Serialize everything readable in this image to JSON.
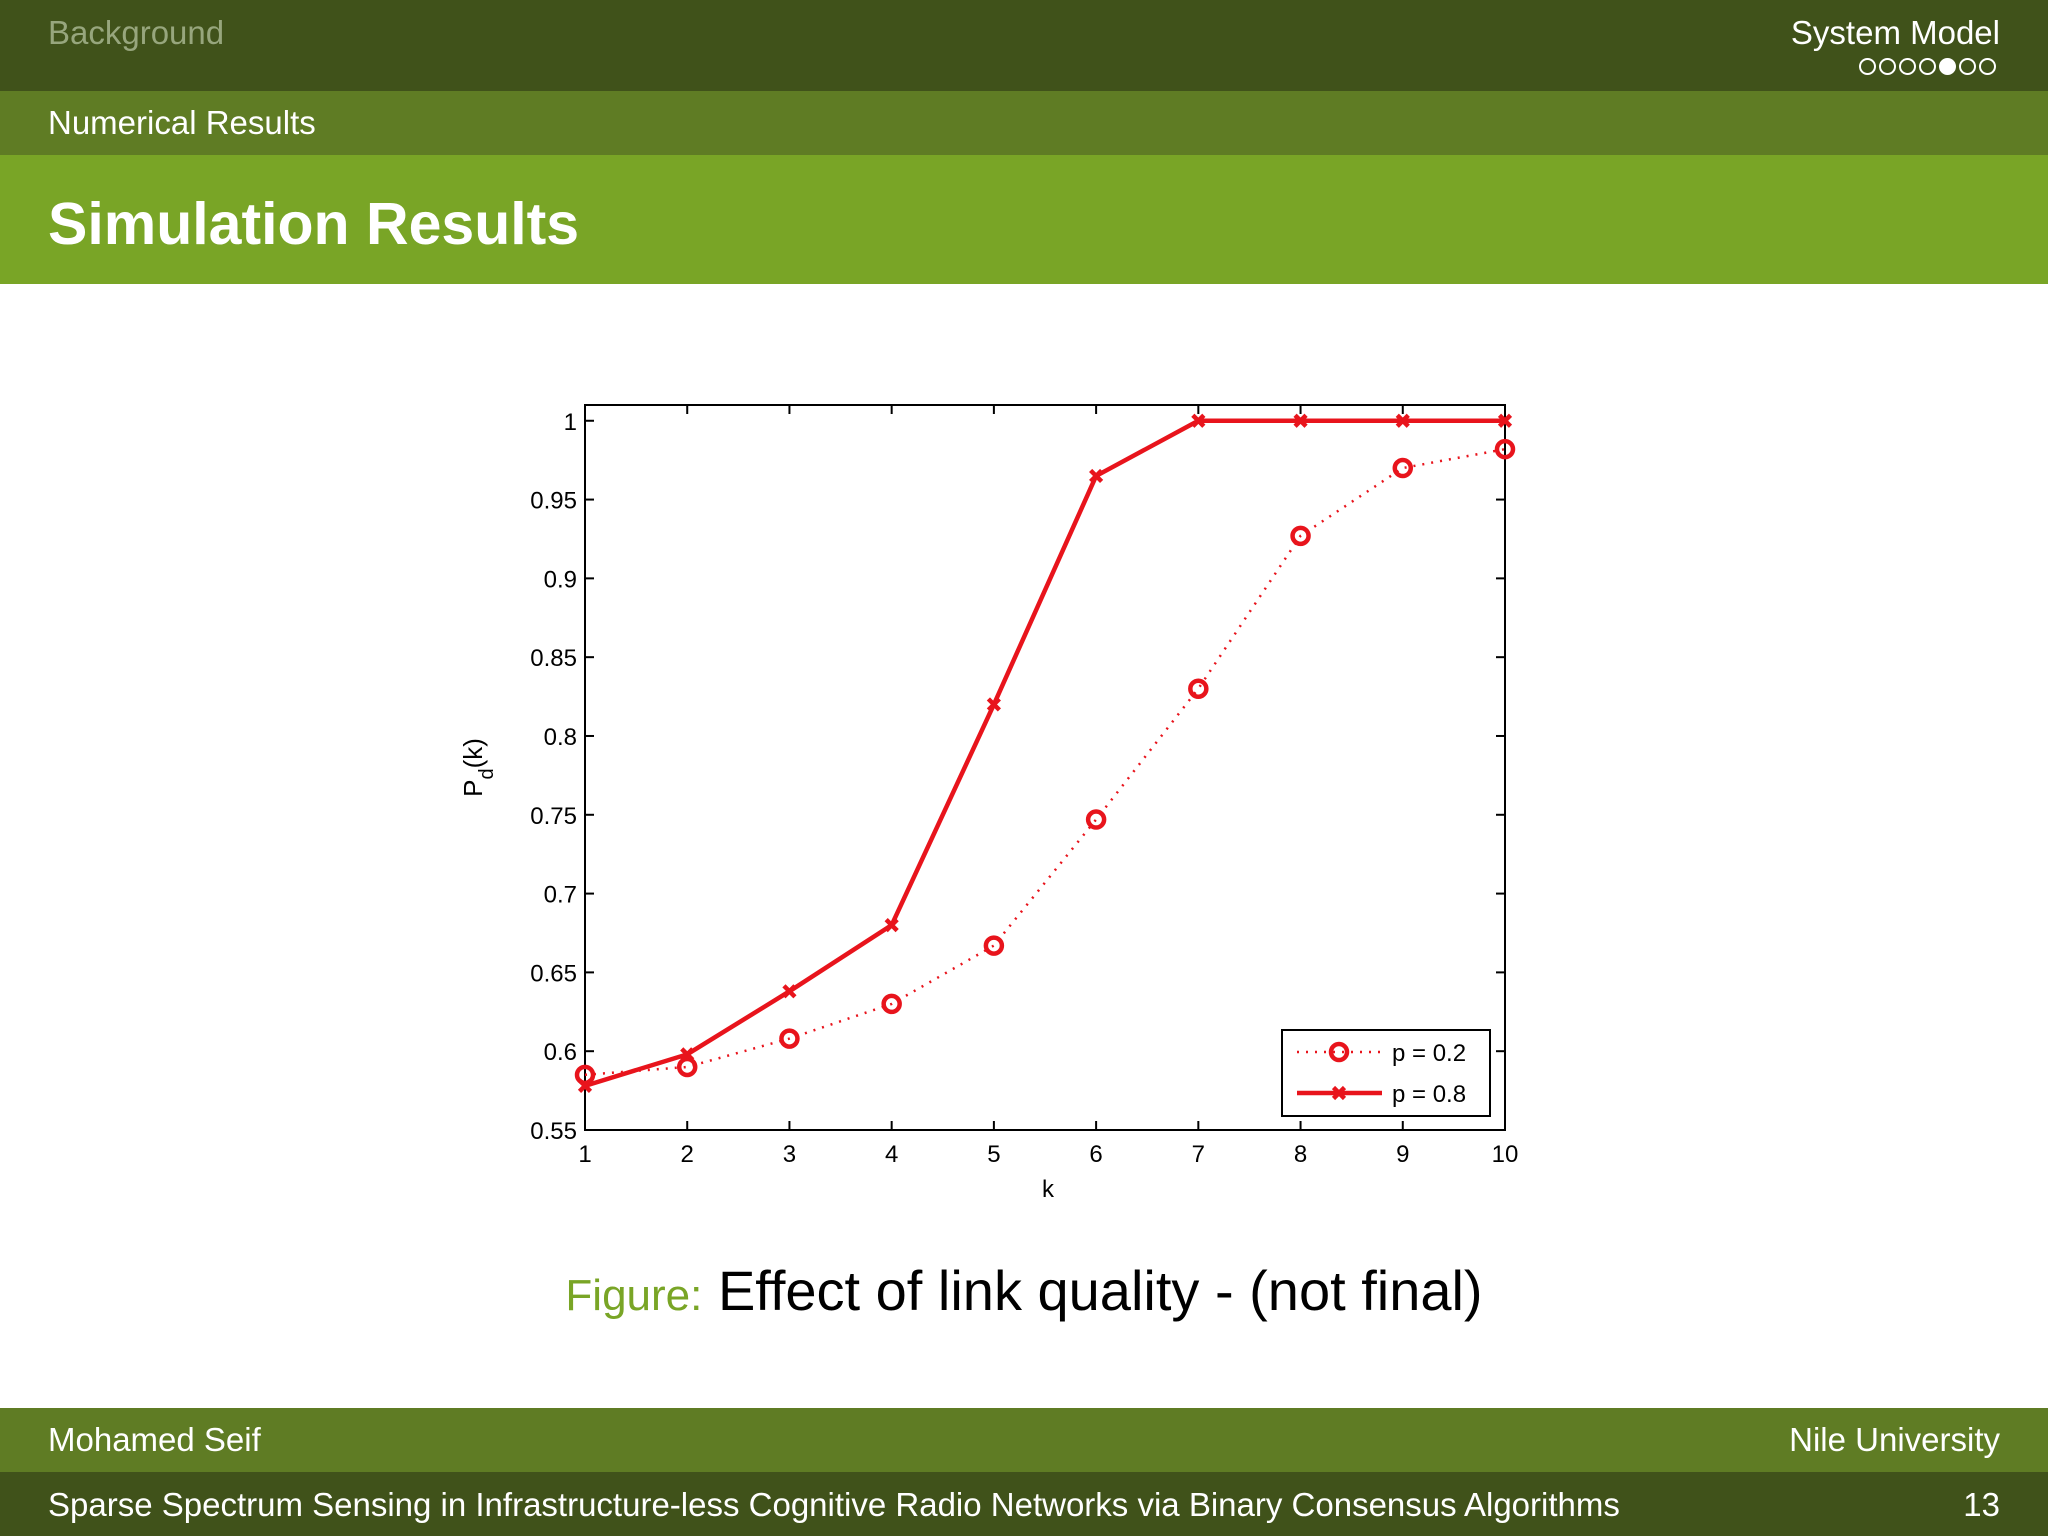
{
  "header": {
    "section_left": "Background",
    "section_right": "System Model",
    "nav_dots": [
      false,
      false,
      false,
      false,
      true,
      false,
      false
    ],
    "subsection": "Numerical Results",
    "frame_title": "Simulation Results"
  },
  "caption": {
    "label": "Figure:",
    "text": "Effect of link quality - (not final)"
  },
  "footer": {
    "author": "Mohamed Seif",
    "institute": "Nile University",
    "talk_title": "Sparse Spectrum Sensing in Infrastructure-less Cognitive Radio Networks via Binary Consensus Algorithms",
    "page_number": "13"
  },
  "colors": {
    "nav_dark": "#40521a",
    "nav_mid": "#5f7c24",
    "title_green": "#79a526",
    "series_red": "#e8141c"
  },
  "chart_data": {
    "type": "line",
    "title": "",
    "xlabel": "k",
    "ylabel_main": "P",
    "ylabel_sub": "d",
    "ylabel_tail": "(k)",
    "xlim": [
      1,
      10
    ],
    "ylim": [
      0.55,
      1.01
    ],
    "xticks": [
      "1",
      "2",
      "3",
      "4",
      "5",
      "6",
      "7",
      "8",
      "9",
      "10"
    ],
    "yticks": [
      "0.55",
      "0.6",
      "0.65",
      "0.7",
      "0.75",
      "0.8",
      "0.85",
      "0.9",
      "0.95",
      "1"
    ],
    "x": [
      1,
      2,
      3,
      4,
      5,
      6,
      7,
      8,
      9,
      10
    ],
    "series": [
      {
        "name": "p = 0.2",
        "marker": "circle",
        "line": "dotted",
        "color": "#e8141c",
        "values": [
          0.585,
          0.59,
          0.608,
          0.63,
          0.667,
          0.747,
          0.83,
          0.927,
          0.97,
          0.982
        ]
      },
      {
        "name": "p = 0.8",
        "marker": "x",
        "line": "solid",
        "color": "#e8141c",
        "values": [
          0.578,
          0.598,
          0.638,
          0.68,
          0.82,
          0.965,
          1.0,
          1.0,
          1.0,
          1.0
        ]
      }
    ],
    "legend_position": "bottom-right",
    "grid": false
  }
}
